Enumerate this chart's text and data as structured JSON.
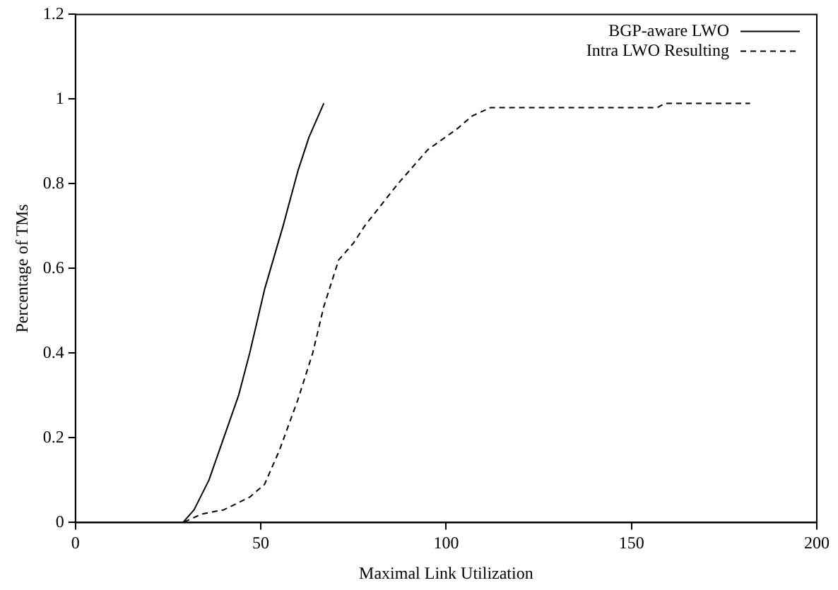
{
  "chart_data": {
    "type": "line",
    "xlabel": "Maximal Link Utilization",
    "ylabel": "Percentage of TMs",
    "xlim": [
      0,
      200
    ],
    "ylim": [
      0,
      1.2
    ],
    "xticks": [
      0,
      50,
      100,
      150,
      200
    ],
    "yticks": [
      0,
      0.2,
      0.4,
      0.6,
      0.8,
      1,
      1.2
    ],
    "grid": false,
    "legend": "top right",
    "marker": "none",
    "series": [
      {
        "name": "BGP-aware LWO",
        "color": "#000000",
        "line_style": "solid",
        "x": [
          0,
          29,
          32,
          36,
          40,
          44,
          47,
          51,
          54,
          56,
          60,
          63,
          67
        ],
        "values": [
          0,
          0,
          0.03,
          0.1,
          0.2,
          0.3,
          0.4,
          0.55,
          0.64,
          0.7,
          0.83,
          0.91,
          0.99
        ]
      },
      {
        "name": "Intra LWO Resulting",
        "color": "#000000",
        "line_style": "dashed",
        "x": [
          0,
          29,
          34,
          40,
          47,
          51,
          55,
          60,
          64,
          67,
          71,
          75,
          78,
          87,
          95,
          103,
          107,
          112,
          157,
          159,
          182
        ],
        "values": [
          0,
          0,
          0.02,
          0.03,
          0.06,
          0.09,
          0.17,
          0.29,
          0.4,
          0.51,
          0.62,
          0.66,
          0.7,
          0.8,
          0.88,
          0.93,
          0.96,
          0.98,
          0.98,
          0.99,
          0.99
        ]
      }
    ]
  }
}
